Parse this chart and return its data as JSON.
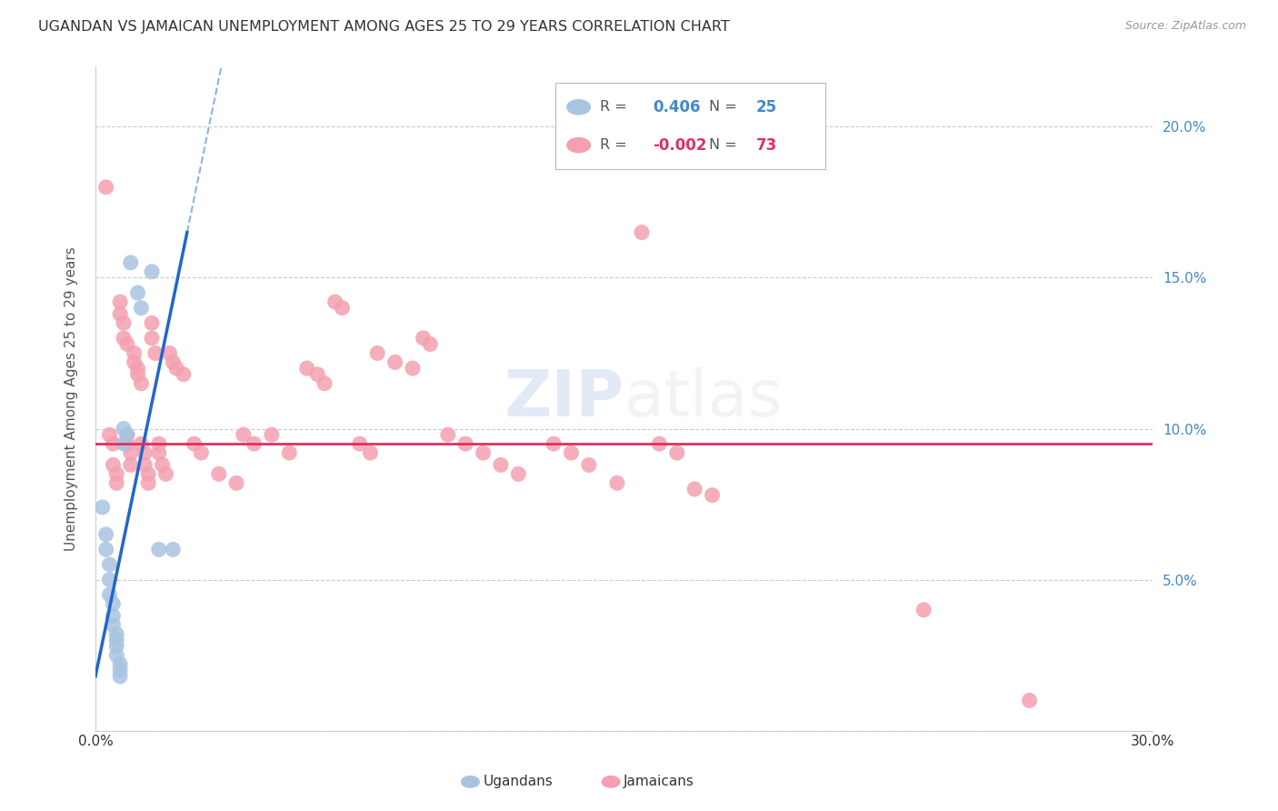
{
  "title": "UGANDAN VS JAMAICAN UNEMPLOYMENT AMONG AGES 25 TO 29 YEARS CORRELATION CHART",
  "source": "Source: ZipAtlas.com",
  "ylabel": "Unemployment Among Ages 25 to 29 years",
  "xlim": [
    0.0,
    0.3
  ],
  "ylim": [
    0.0,
    0.22
  ],
  "blue_color": "#a8c4e0",
  "pink_color": "#f4a0b0",
  "trendline_blue_color": "#2266cc",
  "trendline_pink_color": "#e03060",
  "grid_color": "#cccccc",
  "title_color": "#333333",
  "right_tick_color": "#4488cc",
  "watermark": "ZIPatlas",
  "ugandan_points": [
    [
      0.002,
      0.074
    ],
    [
      0.003,
      0.065
    ],
    [
      0.003,
      0.06
    ],
    [
      0.004,
      0.055
    ],
    [
      0.004,
      0.05
    ],
    [
      0.004,
      0.045
    ],
    [
      0.005,
      0.042
    ],
    [
      0.005,
      0.038
    ],
    [
      0.005,
      0.035
    ],
    [
      0.006,
      0.032
    ],
    [
      0.006,
      0.03
    ],
    [
      0.006,
      0.028
    ],
    [
      0.006,
      0.025
    ],
    [
      0.007,
      0.022
    ],
    [
      0.007,
      0.02
    ],
    [
      0.007,
      0.018
    ],
    [
      0.008,
      0.095
    ],
    [
      0.008,
      0.1
    ],
    [
      0.009,
      0.098
    ],
    [
      0.01,
      0.155
    ],
    [
      0.012,
      0.145
    ],
    [
      0.013,
      0.14
    ],
    [
      0.016,
      0.152
    ],
    [
      0.018,
      0.06
    ],
    [
      0.022,
      0.06
    ]
  ],
  "jamaican_points": [
    [
      0.003,
      0.18
    ],
    [
      0.004,
      0.098
    ],
    [
      0.005,
      0.095
    ],
    [
      0.005,
      0.088
    ],
    [
      0.006,
      0.085
    ],
    [
      0.006,
      0.082
    ],
    [
      0.007,
      0.142
    ],
    [
      0.007,
      0.138
    ],
    [
      0.008,
      0.135
    ],
    [
      0.008,
      0.13
    ],
    [
      0.009,
      0.128
    ],
    [
      0.009,
      0.098
    ],
    [
      0.009,
      0.095
    ],
    [
      0.01,
      0.092
    ],
    [
      0.01,
      0.088
    ],
    [
      0.011,
      0.125
    ],
    [
      0.011,
      0.122
    ],
    [
      0.012,
      0.12
    ],
    [
      0.012,
      0.118
    ],
    [
      0.013,
      0.115
    ],
    [
      0.013,
      0.095
    ],
    [
      0.014,
      0.092
    ],
    [
      0.014,
      0.088
    ],
    [
      0.015,
      0.085
    ],
    [
      0.015,
      0.082
    ],
    [
      0.016,
      0.135
    ],
    [
      0.016,
      0.13
    ],
    [
      0.017,
      0.125
    ],
    [
      0.018,
      0.095
    ],
    [
      0.018,
      0.092
    ],
    [
      0.019,
      0.088
    ],
    [
      0.02,
      0.085
    ],
    [
      0.021,
      0.125
    ],
    [
      0.022,
      0.122
    ],
    [
      0.023,
      0.12
    ],
    [
      0.025,
      0.118
    ],
    [
      0.028,
      0.095
    ],
    [
      0.03,
      0.092
    ],
    [
      0.035,
      0.085
    ],
    [
      0.04,
      0.082
    ],
    [
      0.042,
      0.098
    ],
    [
      0.045,
      0.095
    ],
    [
      0.05,
      0.098
    ],
    [
      0.055,
      0.092
    ],
    [
      0.06,
      0.12
    ],
    [
      0.063,
      0.118
    ],
    [
      0.065,
      0.115
    ],
    [
      0.068,
      0.142
    ],
    [
      0.07,
      0.14
    ],
    [
      0.075,
      0.095
    ],
    [
      0.078,
      0.092
    ],
    [
      0.08,
      0.125
    ],
    [
      0.085,
      0.122
    ],
    [
      0.09,
      0.12
    ],
    [
      0.093,
      0.13
    ],
    [
      0.095,
      0.128
    ],
    [
      0.1,
      0.098
    ],
    [
      0.105,
      0.095
    ],
    [
      0.11,
      0.092
    ],
    [
      0.115,
      0.088
    ],
    [
      0.12,
      0.085
    ],
    [
      0.13,
      0.095
    ],
    [
      0.135,
      0.092
    ],
    [
      0.14,
      0.088
    ],
    [
      0.148,
      0.082
    ],
    [
      0.155,
      0.165
    ],
    [
      0.16,
      0.095
    ],
    [
      0.165,
      0.092
    ],
    [
      0.17,
      0.08
    ],
    [
      0.175,
      0.078
    ],
    [
      0.235,
      0.04
    ],
    [
      0.265,
      0.01
    ]
  ]
}
